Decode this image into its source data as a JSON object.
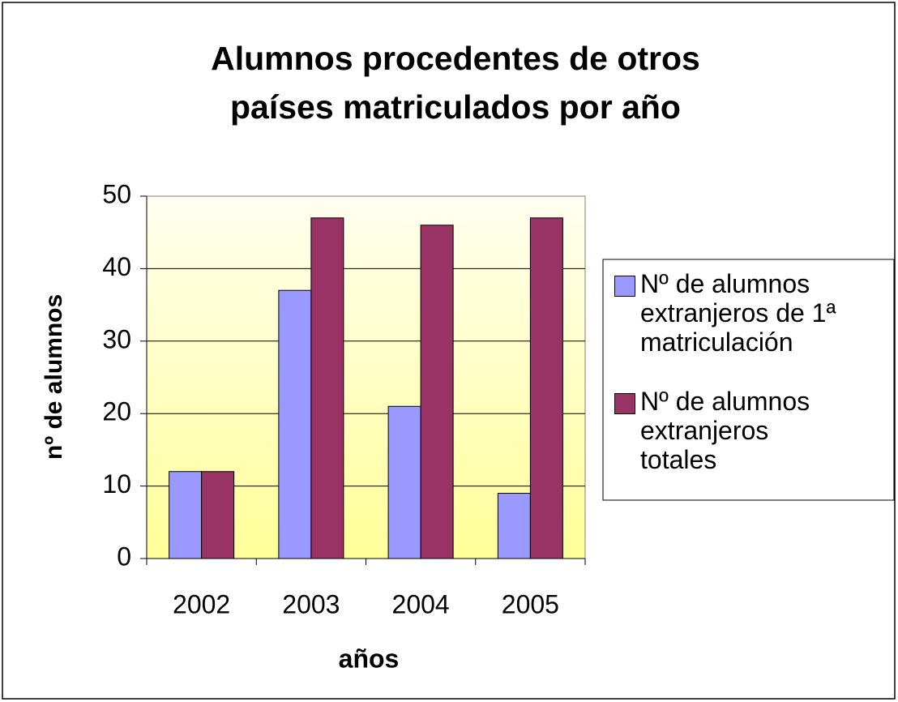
{
  "chart_data": {
    "type": "bar",
    "title": "Alumnos procedentes de otros países matriculados por año",
    "x_label": "años",
    "y_label": "nº de alumnos",
    "categories": [
      "2002",
      "2003",
      "2004",
      "2005"
    ],
    "series": [
      {
        "name": "Nº de alumnos extranjeros de 1ª matriculación",
        "color": "#9999ff",
        "values": [
          12,
          37,
          21,
          9
        ]
      },
      {
        "name": "Nº de alumnos extranjeros totales",
        "color": "#993366",
        "values": [
          12,
          47,
          46,
          47
        ]
      }
    ],
    "ylim": [
      0,
      50
    ],
    "yticks": [
      0,
      10,
      20,
      30,
      40,
      50
    ],
    "grid": true,
    "legend": "right"
  }
}
